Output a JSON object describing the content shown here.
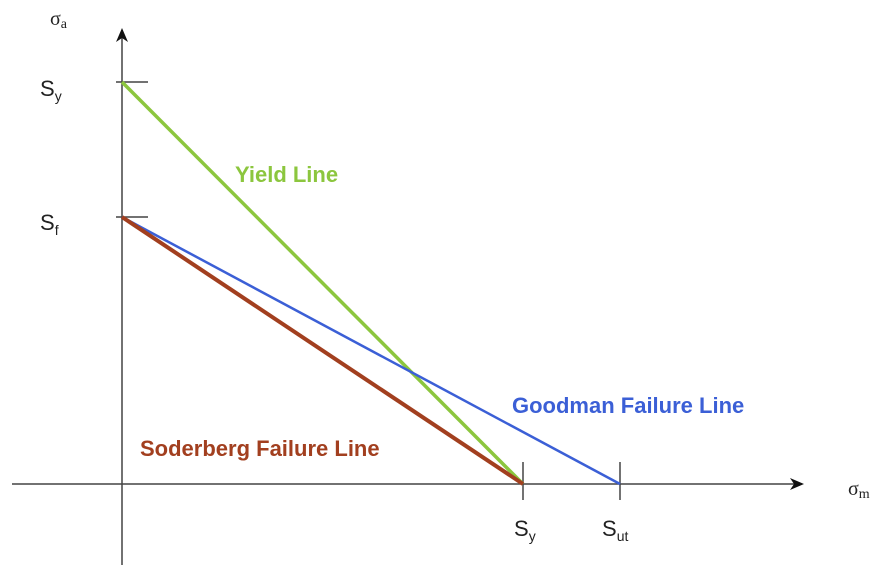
{
  "axes": {
    "y_axis": {
      "symbol": "σ",
      "subscript": "a"
    },
    "x_axis": {
      "symbol": "σ",
      "subscript": "m"
    }
  },
  "y_marks": [
    {
      "symbol": "S",
      "subscript": "y"
    },
    {
      "symbol": "S",
      "subscript": "f"
    }
  ],
  "x_marks": [
    {
      "symbol": "S",
      "subscript": "y"
    },
    {
      "symbol": "S",
      "subscript": "ut"
    }
  ],
  "lines": [
    {
      "label": "Yield Line"
    },
    {
      "label": "Goodman Failure Line"
    },
    {
      "label": "Soderberg Failure Line"
    }
  ]
}
